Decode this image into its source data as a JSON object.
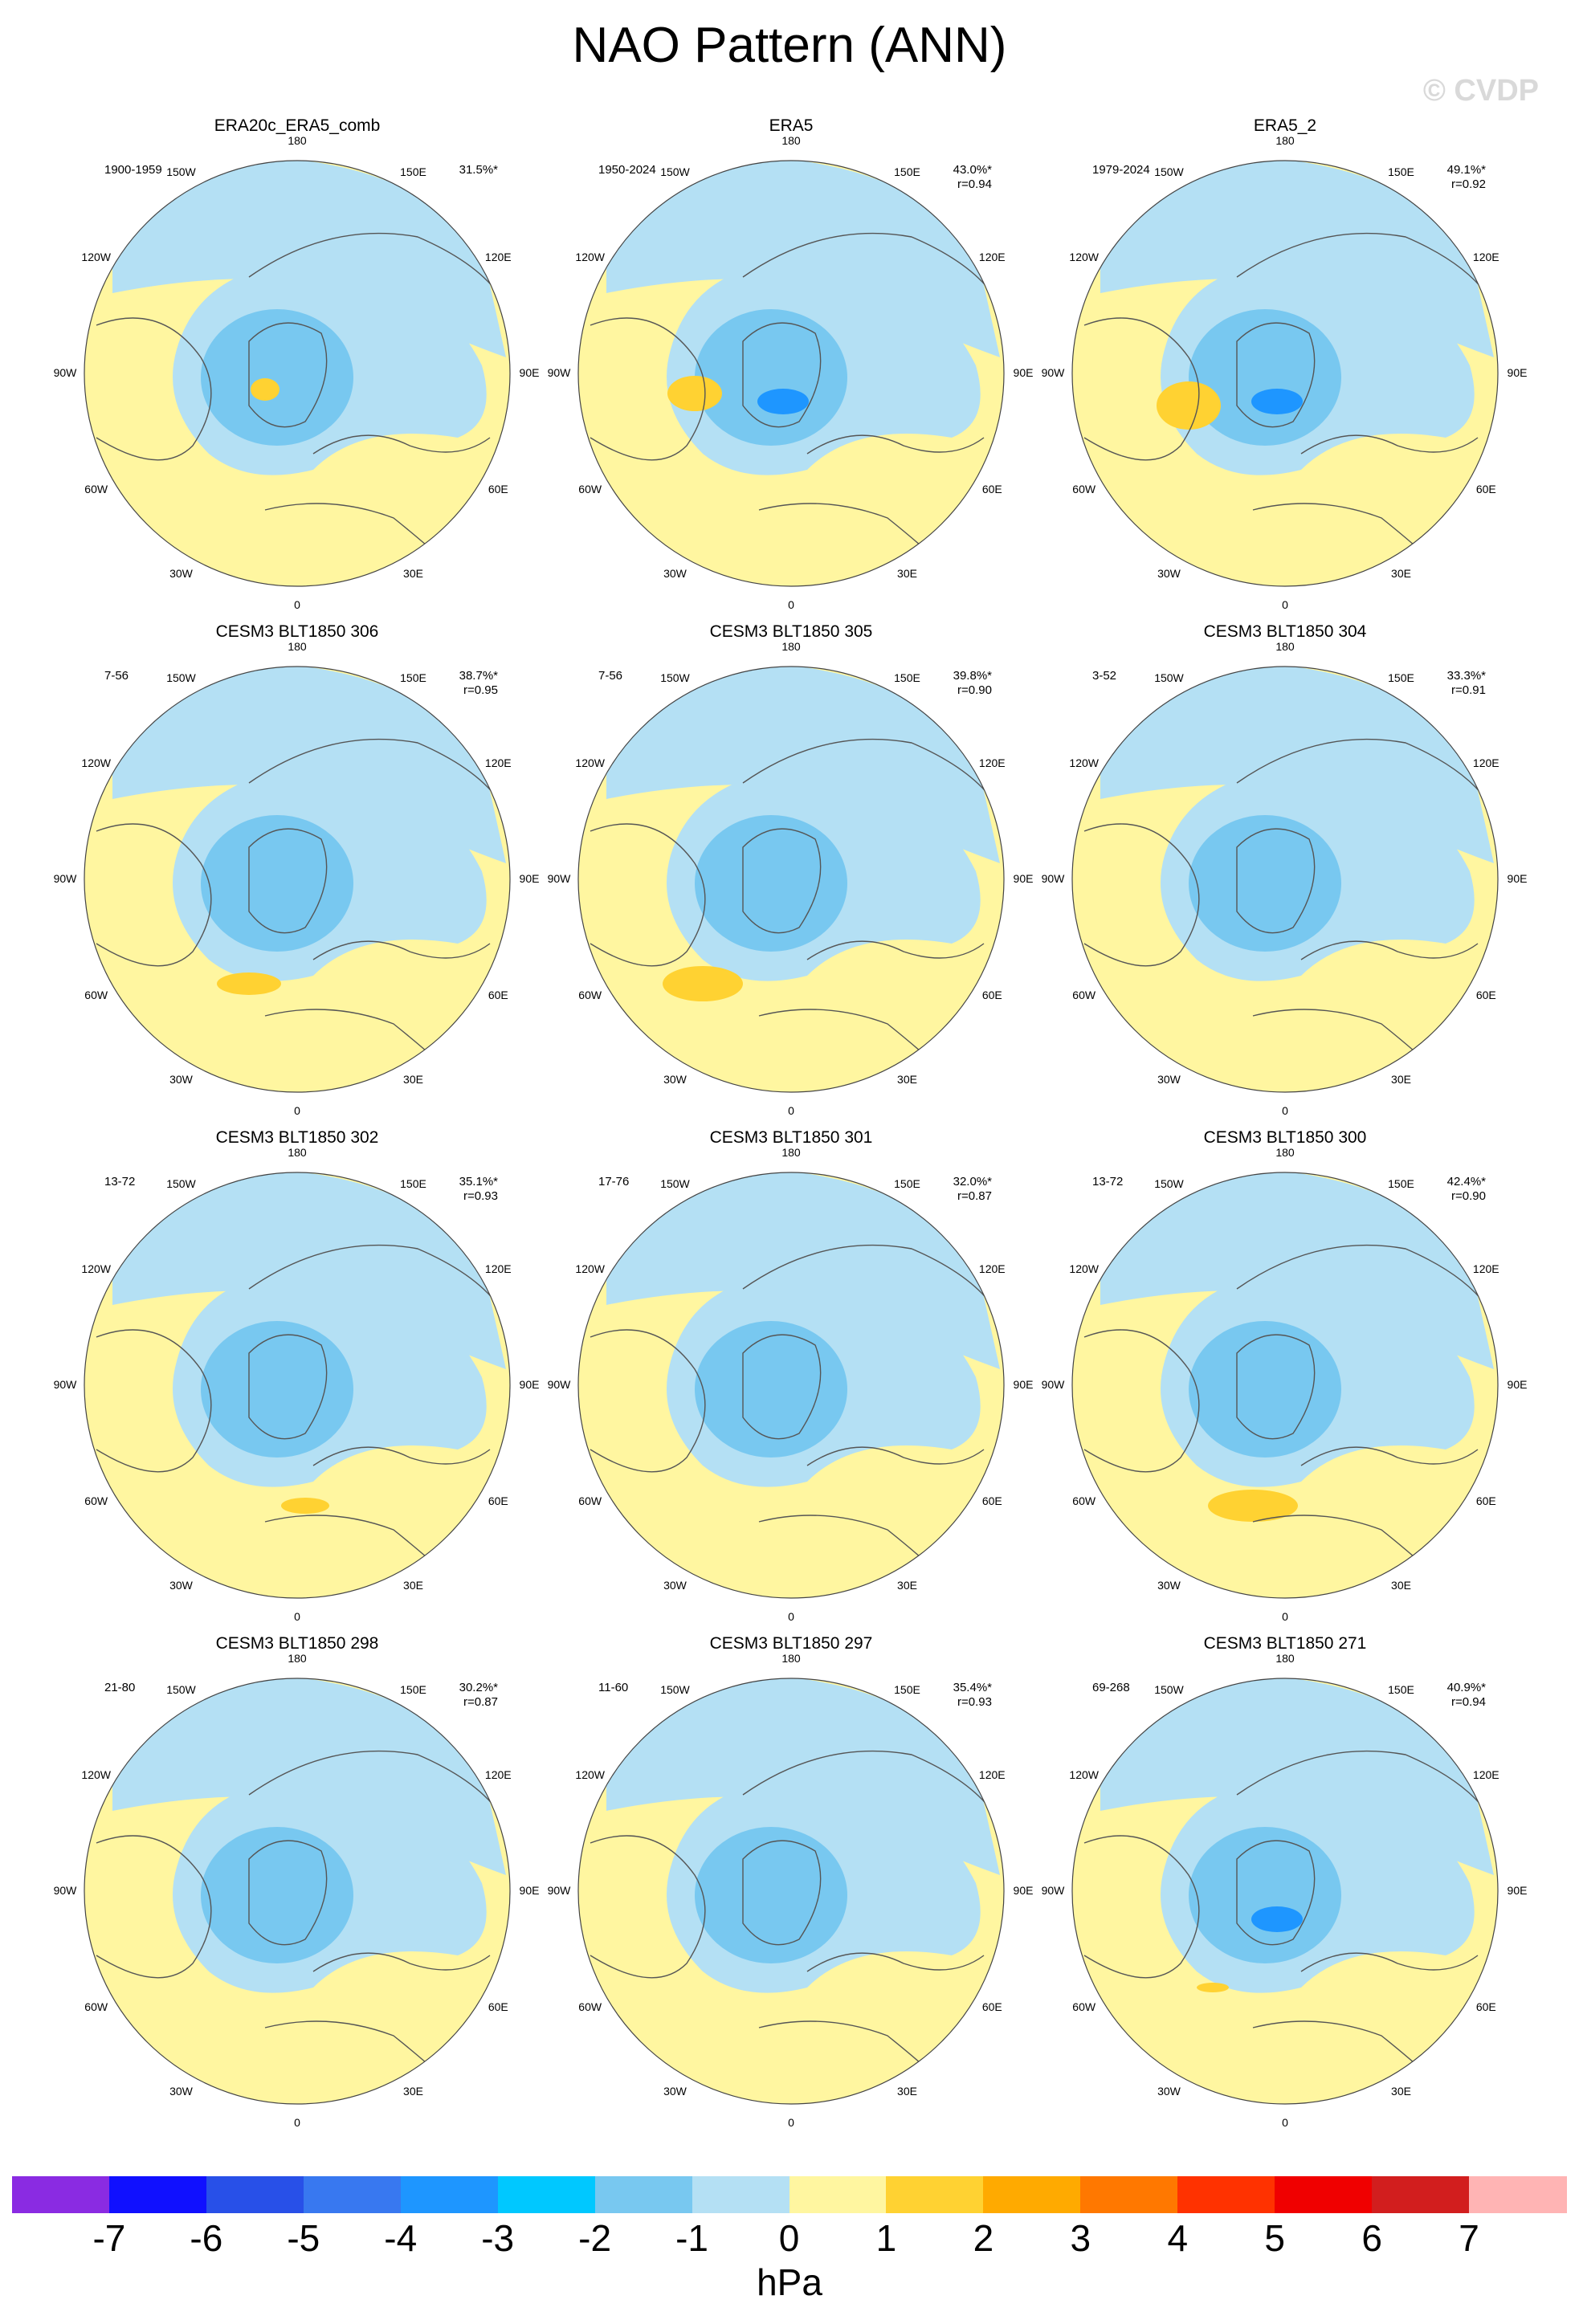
{
  "title": "NAO Pattern (ANN)",
  "watermark": "© CVDP",
  "lon_labels": [
    "180",
    "150E",
    "120E",
    "90E",
    "60E",
    "30E",
    "0",
    "30W",
    "60W",
    "90W",
    "120W",
    "150W"
  ],
  "panels": [
    {
      "title": "ERA20c_ERA5_comb",
      "years": "1900-1959",
      "pct": "31.5%*",
      "r": ""
    },
    {
      "title": "ERA5",
      "years": "1950-2024",
      "pct": "43.0%*",
      "r": "r=0.94"
    },
    {
      "title": "ERA5_2",
      "years": "1979-2024",
      "pct": "49.1%*",
      "r": "r=0.92"
    },
    {
      "title": "CESM3 BLT1850 306",
      "years": "7-56",
      "pct": "38.7%*",
      "r": "r=0.95"
    },
    {
      "title": "CESM3 BLT1850 305",
      "years": "7-56",
      "pct": "39.8%*",
      "r": "r=0.90"
    },
    {
      "title": "CESM3 BLT1850 304",
      "years": "3-52",
      "pct": "33.3%*",
      "r": "r=0.91"
    },
    {
      "title": "CESM3 BLT1850 302",
      "years": "13-72",
      "pct": "35.1%*",
      "r": "r=0.93"
    },
    {
      "title": "CESM3 BLT1850 301",
      "years": "17-76",
      "pct": "32.0%*",
      "r": "r=0.87"
    },
    {
      "title": "CESM3 BLT1850 300",
      "years": "13-72",
      "pct": "42.4%*",
      "r": "r=0.90"
    },
    {
      "title": "CESM3 BLT1850 298",
      "years": "21-80",
      "pct": "30.2%*",
      "r": "r=0.87"
    },
    {
      "title": "CESM3 BLT1850 297",
      "years": "11-60",
      "pct": "35.4%*",
      "r": "r=0.93"
    },
    {
      "title": "CESM3 BLT1850 271",
      "years": "69-268",
      "pct": "40.9%*",
      "r": "r=0.94"
    }
  ],
  "colorbar": {
    "unit": "hPa",
    "ticks": [
      "-7",
      "-6",
      "-5",
      "-4",
      "-3",
      "-2",
      "-1",
      "0",
      "1",
      "2",
      "3",
      "4",
      "5",
      "6",
      "7"
    ],
    "colors": [
      "#8a2be2",
      "#1010ff",
      "#2850e8",
      "#3878f0",
      "#1e96ff",
      "#00c8ff",
      "#78c8f0",
      "#b4e0f4",
      "#fff6a0",
      "#ffd232",
      "#ffaa00",
      "#ff7800",
      "#ff3200",
      "#f00000",
      "#d21e1e",
      "#ffb4b4"
    ]
  }
}
